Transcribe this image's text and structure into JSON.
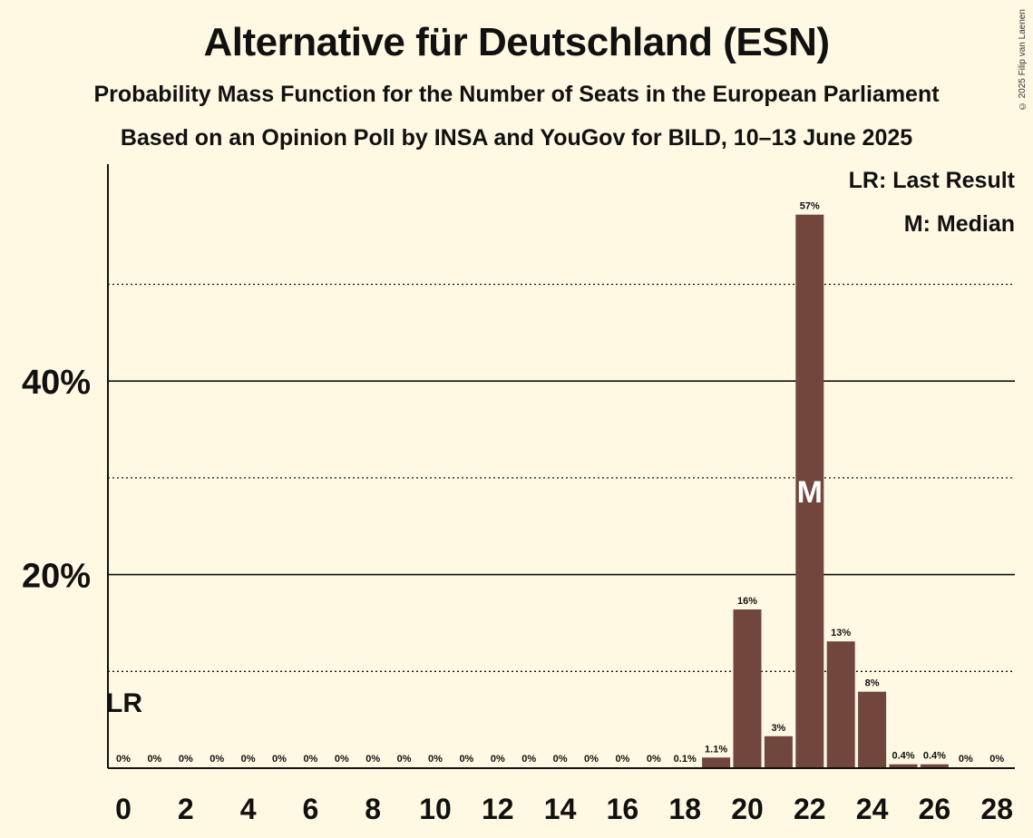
{
  "title": "Alternative für Deutschland (ESN)",
  "subtitle_1": "Probability Mass Function for the Number of Seats in the European Parliament",
  "subtitle_2": "Based on an Opinion Poll by INSA and YouGov for BILD, 10–13 June 2025",
  "copyright": "© 2025 Filip van Laenen",
  "legend": {
    "last_result": "LR: Last Result",
    "median": "M: Median"
  },
  "colors": {
    "background": "#FFF8E3",
    "bar": "#71463C",
    "text": "#111111"
  },
  "chart_data": {
    "type": "bar",
    "title": "Alternative für Deutschland (ESN)",
    "xlabel": "",
    "ylabel": "",
    "x": [
      0,
      1,
      2,
      3,
      4,
      5,
      6,
      7,
      8,
      9,
      10,
      11,
      12,
      13,
      14,
      15,
      16,
      17,
      18,
      19,
      20,
      21,
      22,
      23,
      24,
      25,
      26,
      27,
      28
    ],
    "values": [
      0,
      0,
      0,
      0,
      0,
      0,
      0,
      0,
      0,
      0,
      0,
      0,
      0,
      0,
      0,
      0,
      0,
      0,
      0.1,
      1.1,
      16.4,
      3.3,
      57.2,
      13.1,
      7.9,
      0.4,
      0.4,
      0,
      0
    ],
    "data_labels": [
      "0%",
      "0%",
      "0%",
      "0%",
      "0%",
      "0%",
      "0%",
      "0%",
      "0%",
      "0%",
      "0%",
      "0%",
      "0%",
      "0%",
      "0%",
      "0%",
      "0%",
      "0%",
      "0.1%",
      "1.1%",
      "16%",
      "3%",
      "57%",
      "13%",
      "8%",
      "0.4%",
      "0.4%",
      "0%",
      "0%"
    ],
    "x_tick_labels": [
      "0",
      "2",
      "4",
      "6",
      "8",
      "10",
      "12",
      "14",
      "16",
      "18",
      "20",
      "22",
      "24",
      "26",
      "28"
    ],
    "y_tick_labels": [
      "20%",
      "40%"
    ],
    "y_ticks_labeled": [
      20,
      40
    ],
    "y_gridlines_solid": [
      20,
      40
    ],
    "y_gridlines_dotted": [
      10,
      30,
      50
    ],
    "ylim": [
      0,
      62
    ],
    "last_result_seat": 0,
    "last_result_label": "LR",
    "median_seat": 22,
    "median_label": "M",
    "legend_placement": "top-right"
  }
}
